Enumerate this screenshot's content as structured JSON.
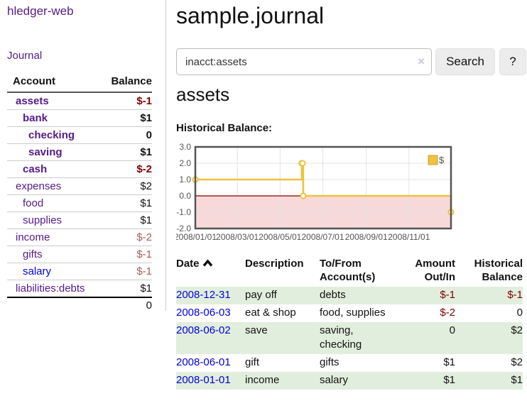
{
  "app": {
    "title": "hledger-web"
  },
  "colors": {
    "link_visited_purple": "#551a8b",
    "link_unvisited_blue": "#0000dd",
    "negative_strong": "#7f0000",
    "negative_muted": "#aa5a5a",
    "row_green": "#e2eedd",
    "chart_line_gold": "#edc240",
    "chart_negative_region_pink": "#f7d9d9",
    "chart_zero_line_red": "#8b0000"
  },
  "sidebar": {
    "journal_link": "Journal",
    "accounts_table": {
      "account_header": "Account",
      "balance_header": "Balance",
      "rows": [
        {
          "name": "assets",
          "balance": "$-1",
          "level": 1,
          "matched": true
        },
        {
          "name": "bank",
          "balance": "$1",
          "level": 2,
          "matched": true
        },
        {
          "name": "checking",
          "balance": "0",
          "level": 3,
          "matched": true
        },
        {
          "name": "saving",
          "balance": "$1",
          "level": 3,
          "matched": true
        },
        {
          "name": "cash",
          "balance": "$-2",
          "level": 2,
          "matched": true
        },
        {
          "name": "expenses",
          "balance": "$2",
          "level": 1,
          "matched": false
        },
        {
          "name": "food",
          "balance": "$1",
          "level": 2,
          "matched": false
        },
        {
          "name": "supplies",
          "balance": "$1",
          "level": 2,
          "matched": false
        },
        {
          "name": "income",
          "balance": "$-2",
          "level": 1,
          "matched": false
        },
        {
          "name": "gifts",
          "balance": "$-1",
          "level": 2,
          "matched": false
        },
        {
          "name": "salary",
          "balance": "$-1",
          "level": 2,
          "matched": false,
          "unvisited": true
        },
        {
          "name": "liabilities:debts",
          "balance": "$1",
          "level": 1,
          "matched": false
        }
      ],
      "total": "0"
    }
  },
  "main": {
    "title": "sample.journal",
    "search": {
      "value": "inacct:assets",
      "clear_icon": "×",
      "button_label": "Search",
      "help_label": "?"
    },
    "account_heading": "assets",
    "chart_label": "Historical Balance:"
  },
  "chart_data": {
    "type": "line",
    "step": true,
    "title": "Historical Balance:",
    "legend": "$",
    "legend_position": "top-right",
    "grid": true,
    "ylim": [
      -2.0,
      3.0
    ],
    "y_ticks": [
      3.0,
      2.0,
      1.0,
      0.0,
      -1.0,
      -2.0
    ],
    "x_range": [
      "2008-01-01",
      "2008-12-31"
    ],
    "x_tick_dates": [
      "2008-01-01",
      "2008-03-01",
      "2008-05-01",
      "2008-07-01",
      "2008-09-01",
      "2008-11-01"
    ],
    "x_tick_labels": [
      "2008/01/01",
      "2008/03/01",
      "2008/05/01",
      "2008/07/01",
      "2008/09/01",
      "2008/11/01"
    ],
    "series": [
      {
        "name": "$",
        "points": [
          [
            "2008-01-01",
            1
          ],
          [
            "2008-06-01",
            2
          ],
          [
            "2008-06-02",
            2
          ],
          [
            "2008-06-03",
            0
          ],
          [
            "2008-12-31",
            -1
          ]
        ]
      }
    ]
  },
  "register": {
    "headers": {
      "date": "Date",
      "description": "Description",
      "tofrom": "To/From\nAccount(s)",
      "amount": "Amount\nOut/In",
      "balance": "Historical\nBalance"
    },
    "rows": [
      {
        "date": "2008-12-31",
        "description": "pay off",
        "tofrom": "debts",
        "amount": "$-1",
        "balance": "$-1"
      },
      {
        "date": "2008-06-03",
        "description": "eat & shop",
        "tofrom": "food, supplies",
        "amount": "$-2",
        "balance": "0"
      },
      {
        "date": "2008-06-02",
        "description": "save",
        "tofrom": "saving,\nchecking",
        "amount": "0",
        "balance": "$2"
      },
      {
        "date": "2008-06-01",
        "description": "gift",
        "tofrom": "gifts",
        "amount": "$1",
        "balance": "$2"
      },
      {
        "date": "2008-01-01",
        "description": "income",
        "tofrom": "salary",
        "amount": "$1",
        "balance": "$1"
      }
    ]
  }
}
